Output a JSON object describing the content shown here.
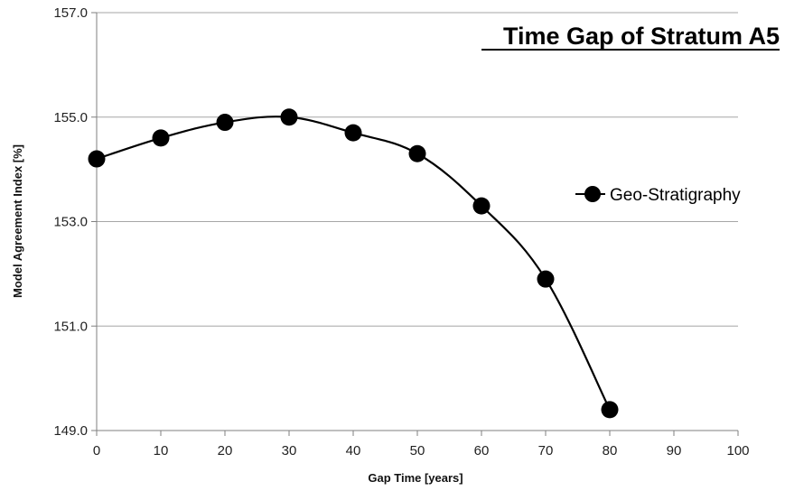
{
  "chart_data": {
    "type": "line",
    "title": "Time Gap of Stratum A5",
    "xlabel": "Gap Time [years]",
    "ylabel": "Model Agreement Index [%]",
    "xlim": [
      0,
      100
    ],
    "ylim": [
      149.0,
      157.0
    ],
    "xticks": [
      "0",
      "10",
      "20",
      "30",
      "40",
      "50",
      "60",
      "70",
      "80",
      "90",
      "100"
    ],
    "yticks": [
      "149.0",
      "151.0",
      "153.0",
      "155.0",
      "157.0"
    ],
    "grid": "horizontal",
    "legend_position": "right",
    "series": [
      {
        "name": "Geo-Stratigraphy",
        "color": "#000000",
        "marker": "circle",
        "smooth": true,
        "x": [
          0,
          10,
          20,
          30,
          40,
          50,
          60,
          70,
          80
        ],
        "y": [
          154.2,
          154.6,
          154.9,
          155.0,
          154.7,
          154.3,
          153.3,
          151.9,
          149.4
        ]
      }
    ]
  }
}
